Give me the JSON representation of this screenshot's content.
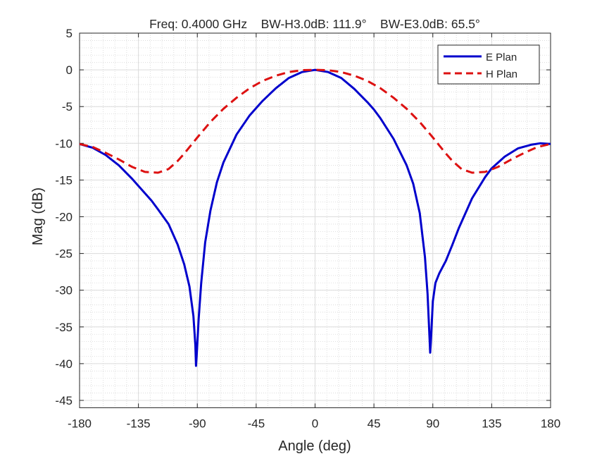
{
  "chart_data": {
    "type": "line",
    "title": "Freq: 0.4000 GHz    BW-H3.0dB: 111.9°    BW-E3.0dB: 65.5°",
    "xlabel": "Angle (deg)",
    "ylabel": "Mag (dB)",
    "xlim": [
      -180,
      180
    ],
    "ylim": [
      -46,
      5
    ],
    "xticks": [
      -180,
      -135,
      -90,
      -45,
      0,
      45,
      90,
      135,
      180
    ],
    "yticks": [
      5,
      0,
      -5,
      -10,
      -15,
      -20,
      -25,
      -30,
      -35,
      -40,
      -45
    ],
    "grid": true,
    "minor_grid": true,
    "legend_position": "top-right",
    "series": [
      {
        "name": "E Plan",
        "color": "#0000CC",
        "style": "solid",
        "x": [
          -180,
          -170,
          -160,
          -150,
          -140,
          -135,
          -125,
          -120,
          -112,
          -105,
          -100,
          -96,
          -93,
          -91.5,
          -91,
          -90.5,
          -89,
          -87,
          -84,
          -80,
          -75,
          -70,
          -60,
          -50,
          -45,
          -40,
          -30,
          -20,
          -10,
          0,
          10,
          20,
          30,
          40,
          45,
          50,
          60,
          70,
          75,
          80,
          84,
          86,
          87.5,
          88,
          88.5,
          90,
          92,
          95,
          100,
          105,
          110,
          120,
          130,
          135,
          145,
          155,
          165,
          172,
          180
        ],
        "y": [
          -10.1,
          -10.6,
          -11.6,
          -13.0,
          -14.8,
          -15.8,
          -17.8,
          -19.0,
          -21.0,
          -23.8,
          -26.5,
          -29.5,
          -33.5,
          -37.5,
          -40.3,
          -39.0,
          -34.0,
          -29.0,
          -23.5,
          -19.2,
          -15.3,
          -12.6,
          -8.8,
          -6.2,
          -5.2,
          -4.2,
          -2.5,
          -1.1,
          -0.3,
          0,
          -0.3,
          -1.1,
          -2.6,
          -4.4,
          -5.4,
          -6.6,
          -9.4,
          -13.0,
          -15.5,
          -19.5,
          -25.5,
          -30.5,
          -36.5,
          -38.5,
          -37.0,
          -31.5,
          -29.0,
          -27.7,
          -26.0,
          -23.8,
          -21.5,
          -17.5,
          -14.6,
          -13.4,
          -11.8,
          -10.7,
          -10.2,
          -10.0,
          -10.1
        ]
      },
      {
        "name": "H Plan",
        "color": "#DD1111",
        "style": "dashed",
        "x": [
          -180,
          -170,
          -160,
          -150,
          -140,
          -130,
          -120,
          -112,
          -105,
          -100,
          -95,
          -90,
          -80,
          -70,
          -60,
          -50,
          -40,
          -30,
          -20,
          -10,
          0,
          10,
          20,
          30,
          40,
          50,
          60,
          70,
          80,
          90,
          95,
          100,
          105,
          112,
          120,
          130,
          140,
          150,
          160,
          170,
          180
        ],
        "y": [
          -10.1,
          -10.5,
          -11.3,
          -12.2,
          -13.2,
          -13.9,
          -14.0,
          -13.5,
          -12.4,
          -11.4,
          -10.3,
          -9.2,
          -7.1,
          -5.3,
          -3.8,
          -2.5,
          -1.5,
          -0.8,
          -0.3,
          -0.05,
          0,
          -0.05,
          -0.3,
          -0.8,
          -1.5,
          -2.5,
          -3.8,
          -5.3,
          -7.1,
          -9.2,
          -10.3,
          -11.4,
          -12.4,
          -13.5,
          -14.0,
          -13.9,
          -13.2,
          -12.2,
          -11.3,
          -10.5,
          -10.1
        ]
      }
    ]
  }
}
